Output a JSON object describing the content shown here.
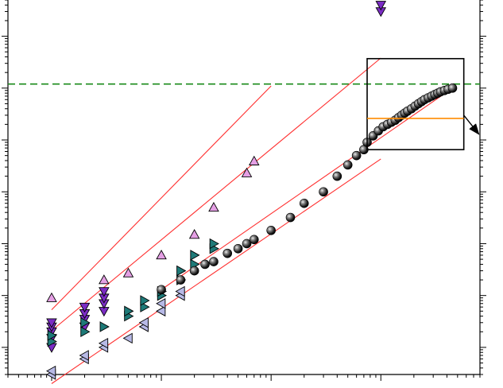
{
  "chart_data": {
    "type": "scatter",
    "title": "",
    "xlabel": "",
    "ylabel": "",
    "x_scale": "log",
    "y_scale": "log",
    "xlim": [
      0.4,
      8000
    ],
    "ylim": [
      0.3,
      5000000
    ],
    "grid": false,
    "legend": "none",
    "colors": {
      "axis": "#000000",
      "fit_line": "#ff3030",
      "threshold": "#1a8a1a",
      "inset_level": "#ff8c00",
      "tri_up": "#e49fe4",
      "tri_down": "#7b2cc4",
      "tri_right": "#1e7a78",
      "tri_left": "#b7b9e6",
      "sphere": "#1b1b1b"
    },
    "reference_lines": [
      {
        "kind": "horizontal",
        "y": 120000,
        "style": "dashed"
      }
    ],
    "annotations": [
      {
        "kind": "inset_box",
        "x_range": [
          750,
          5700
        ],
        "y_range": [
          6500,
          370000
        ]
      },
      {
        "kind": "inset_level",
        "y": 26000,
        "x_range": [
          750,
          5700
        ]
      },
      {
        "kind": "arrow",
        "from": [
          5700,
          30000
        ],
        "to": [
          7800,
          13000
        ]
      }
    ],
    "fit_lines": [
      {
        "x": [
          1.0,
          100
        ],
        "y": [
          5.3,
          110000
        ]
      },
      {
        "x": [
          1.0,
          1000
        ],
        "y": [
          2.1,
          380000
        ]
      },
      {
        "x": [
          1.0,
          1000
        ],
        "y": [
          0.2,
          4300
        ]
      },
      {
        "x": [
          10.0,
          4500
        ],
        "y": [
          13,
          100000
        ]
      }
    ],
    "series": [
      {
        "marker": "triangle-up",
        "x": [
          1.0,
          3.0,
          5.0,
          10,
          20,
          30,
          60,
          70
        ],
        "y": [
          9,
          20,
          27,
          60,
          150,
          500,
          2300,
          3900
        ]
      },
      {
        "marker": "triangle-down",
        "x": [
          1,
          1,
          1,
          1,
          1,
          2,
          2,
          2,
          2,
          3,
          3,
          3,
          3,
          1000,
          1000
        ],
        "y": [
          1.0,
          1.5,
          2.0,
          2.5,
          3.0,
          2.5,
          3.5,
          4.5,
          6,
          5,
          7,
          9,
          12,
          3000000,
          4000000
        ]
      },
      {
        "marker": "triangle-right",
        "x": [
          1,
          1,
          2,
          2,
          3,
          5,
          5,
          7,
          7,
          10,
          10,
          15,
          15,
          20,
          20,
          30,
          30
        ],
        "y": [
          1.3,
          1.7,
          2,
          3,
          2.5,
          4,
          5,
          6,
          8,
          10,
          12,
          20,
          30,
          40,
          60,
          80,
          100
        ]
      },
      {
        "marker": "triangle-left",
        "x": [
          1,
          1,
          2,
          2,
          3,
          3,
          5,
          7,
          7,
          10,
          10,
          15,
          15
        ],
        "y": [
          0.3,
          0.35,
          0.6,
          0.7,
          1.0,
          1.2,
          1.5,
          2.5,
          3,
          5,
          7,
          10,
          12
        ]
      },
      {
        "marker": "sphere",
        "x": [
          10,
          15,
          20,
          25,
          30,
          40,
          50,
          60,
          70,
          100,
          150,
          200,
          300,
          400,
          500,
          600,
          700,
          750,
          850,
          950,
          1050,
          1150,
          1250,
          1350,
          1450,
          1550,
          1650,
          1750,
          1900,
          2050,
          2200,
          2350,
          2500,
          2700,
          2900,
          3100,
          3300,
          3500,
          3800,
          4100,
          4500
        ],
        "y": [
          13,
          20,
          30,
          40,
          45,
          65,
          80,
          100,
          120,
          180,
          320,
          600,
          1000,
          2000,
          3300,
          5000,
          6500,
          9000,
          12000,
          15000,
          18000,
          20000,
          22000,
          24000,
          27000,
          30000,
          33000,
          36000,
          40000,
          45000,
          50000,
          55000,
          60000,
          65000,
          70000,
          75000,
          80000,
          85000,
          90000,
          95000,
          100000
        ]
      }
    ]
  }
}
